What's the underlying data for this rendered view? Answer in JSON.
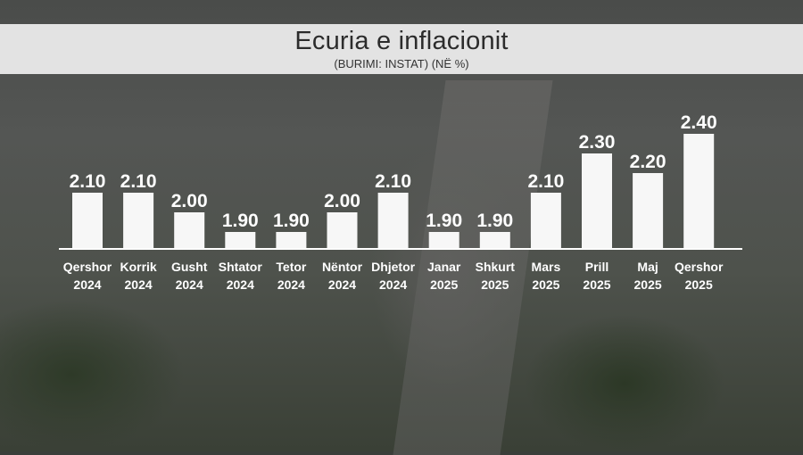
{
  "header": {
    "title": "Ecuria e inflacionit",
    "subtitle": "(BURIMI: INSTAT) (NË %)"
  },
  "chart_data": {
    "type": "bar",
    "title": "Ecuria e inflacionit",
    "subtitle": "(BURIMI: INSTAT) (NË %)",
    "categories": [
      [
        "Qershor",
        "2024"
      ],
      [
        "Korrik",
        "2024"
      ],
      [
        "Gusht",
        "2024"
      ],
      [
        "Shtator",
        "2024"
      ],
      [
        "Tetor",
        "2024"
      ],
      [
        "Nëntor",
        "2024"
      ],
      [
        "Dhjetor",
        "2024"
      ],
      [
        "Janar",
        "2025"
      ],
      [
        "Shkurt",
        "2025"
      ],
      [
        "Mars",
        "2025"
      ],
      [
        "Prill",
        "2025"
      ],
      [
        "Maj",
        "2025"
      ],
      [
        "Qershor",
        "2025"
      ]
    ],
    "values": [
      2.1,
      2.1,
      2.0,
      1.9,
      1.9,
      2.0,
      2.1,
      1.9,
      1.9,
      2.1,
      2.3,
      2.2,
      2.4
    ],
    "value_labels": [
      "2.10",
      "2.10",
      "2.00",
      "1.90",
      "1.90",
      "2.00",
      "2.10",
      "1.90",
      "1.90",
      "2.10",
      "2.30",
      "2.20",
      "2.40"
    ],
    "baseline": 1.9,
    "bar_color": "#f7f7f7",
    "grid": false
  }
}
